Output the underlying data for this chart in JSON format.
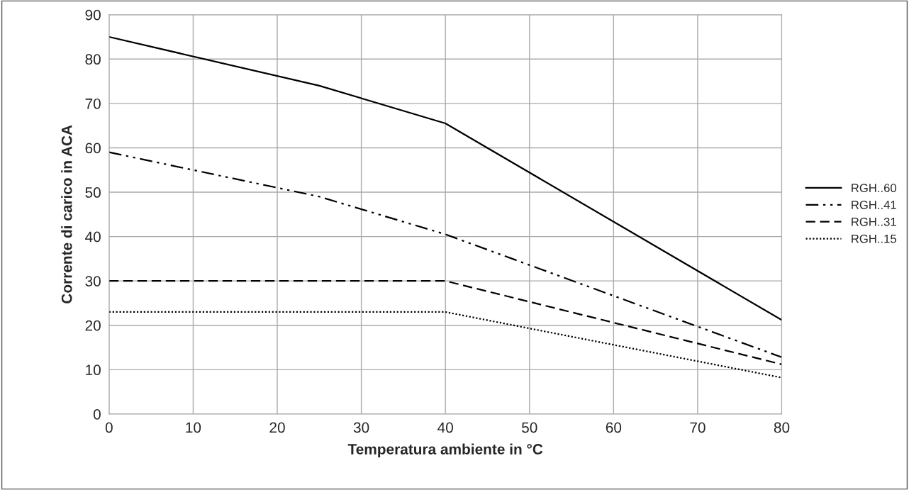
{
  "chart_data": {
    "type": "line",
    "xlabel": "Temperatura ambiente in °C",
    "ylabel": "Corrente di carico in ACA",
    "xlim": [
      0,
      80
    ],
    "xticks": [
      0,
      10,
      20,
      30,
      40,
      50,
      60,
      70,
      80
    ],
    "ylim": [
      0,
      90
    ],
    "yticks": [
      0,
      10,
      20,
      30,
      40,
      50,
      60,
      70,
      80,
      90
    ],
    "grid": true,
    "legend": "right",
    "marker": "none",
    "series": [
      {
        "name": "RGH..60",
        "color": "#000000",
        "line_style": "solid",
        "x": [
          0,
          25,
          40,
          80
        ],
        "values": [
          85,
          74,
          65.5,
          21.2
        ]
      },
      {
        "name": "RGH..41",
        "color": "#000000",
        "line_style": "dashdot",
        "x": [
          0,
          25,
          40,
          80
        ],
        "values": [
          59,
          49,
          40.5,
          12.8
        ]
      },
      {
        "name": "RGH..31",
        "color": "#000000",
        "line_style": "dashed",
        "x": [
          0,
          40,
          80
        ],
        "values": [
          30,
          30,
          11.2
        ]
      },
      {
        "name": "RGH..15",
        "color": "#000000",
        "line_style": "dotted",
        "x": [
          0,
          40,
          80
        ],
        "values": [
          23,
          23,
          8.2
        ]
      }
    ]
  }
}
